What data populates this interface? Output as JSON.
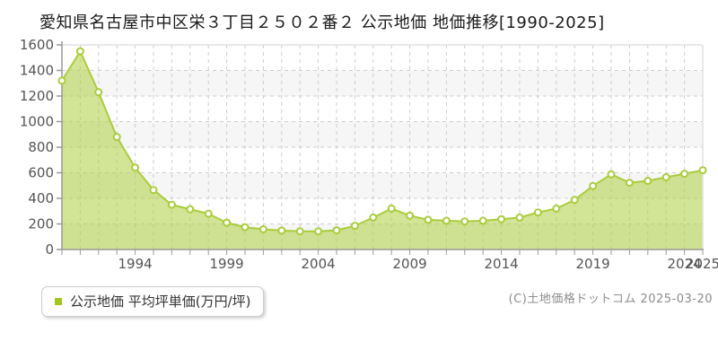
{
  "page": {
    "title": "愛知県名古屋市中区栄３丁目２５０２番２ 公示地価 地価推移[1990-2025]",
    "copyright": "(C)土地価格ドットコム 2025-03-20"
  },
  "legend": {
    "label": "公示地価 平均坪単価(万円/坪)",
    "marker_color": "#9fc71e"
  },
  "chart_data": {
    "type": "area",
    "title": "愛知県名古屋市中区栄３丁目２５０２番２ 公示地価 地価推移[1990-2025]",
    "x": [
      1990,
      1991,
      1992,
      1993,
      1994,
      1995,
      1996,
      1997,
      1998,
      1999,
      2000,
      2001,
      2002,
      2003,
      2004,
      2005,
      2006,
      2007,
      2008,
      2009,
      2010,
      2011,
      2012,
      2013,
      2014,
      2015,
      2016,
      2017,
      2018,
      2019,
      2020,
      2021,
      2022,
      2023,
      2024,
      2025
    ],
    "series": [
      {
        "name": "公示地価 平均坪単価(万円/坪)",
        "values": [
          1320,
          1550,
          1230,
          880,
          640,
          465,
          350,
          315,
          280,
          210,
          175,
          158,
          148,
          142,
          142,
          150,
          185,
          250,
          320,
          265,
          232,
          225,
          220,
          225,
          237,
          250,
          290,
          320,
          388,
          497,
          588,
          522,
          537,
          565,
          592,
          620
        ]
      }
    ],
    "xlabel": "",
    "ylabel": "平均坪単価(万円/坪)",
    "ylim": [
      0,
      1600
    ],
    "ytick_step": 200,
    "xtick_labels": [
      "1994",
      "1999",
      "2004",
      "2009",
      "2014",
      "2019",
      "2024",
      "2025"
    ],
    "grid": true,
    "legend_position": "bottom-left",
    "colors": {
      "area_fill": "#b2d148",
      "area_fill_opacity": 0.58,
      "line": "#a9cd3c",
      "marker_fill": "#ffffff",
      "marker_stroke": "#a9cd3c",
      "grid": "#cccccc",
      "band": "#f6f6f6",
      "axis": "#999999",
      "border": "#e0e0e0",
      "tick_label": "#555555"
    }
  }
}
